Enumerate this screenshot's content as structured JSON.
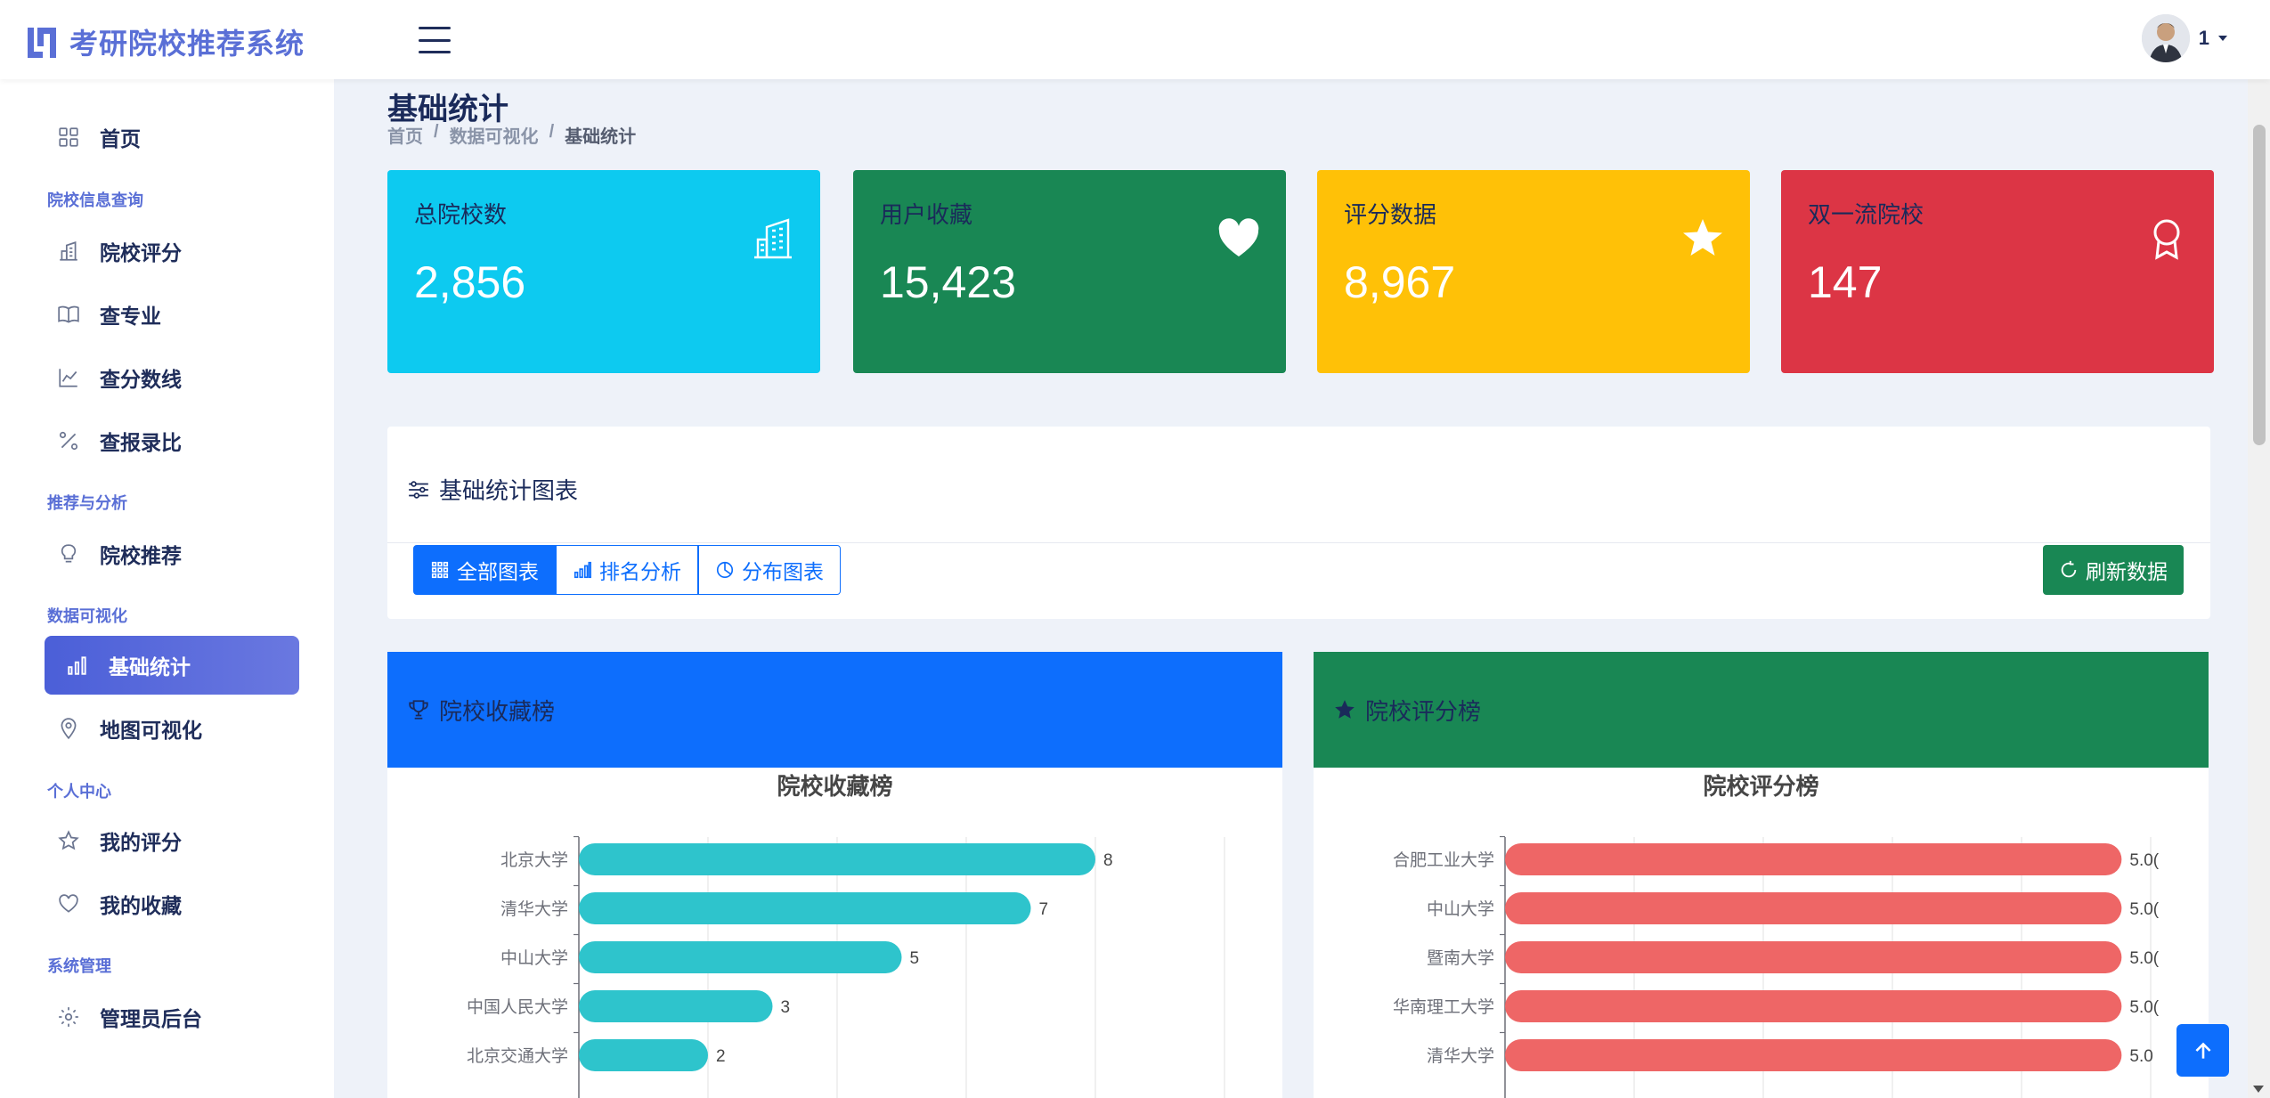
{
  "app": {
    "title": "考研院校推荐系统"
  },
  "user": {
    "name": "1"
  },
  "sidebar": {
    "home": "首页",
    "sections": [
      {
        "label": "院校信息查询",
        "items": [
          "院校评分",
          "查专业",
          "查分数线",
          "查报录比"
        ]
      },
      {
        "label": "推荐与分析",
        "items": [
          "院校推荐"
        ]
      },
      {
        "label": "数据可视化",
        "items": [
          "基础统计",
          "地图可视化"
        ]
      },
      {
        "label": "个人中心",
        "items": [
          "我的评分",
          "我的收藏"
        ]
      },
      {
        "label": "系统管理",
        "items": [
          "管理员后台"
        ]
      }
    ]
  },
  "page": {
    "title": "基础统计",
    "breadcrumb": [
      "首页",
      "数据可视化",
      "基础统计"
    ]
  },
  "stats": [
    {
      "label": "总院校数",
      "value": "2,856",
      "icon": "building-icon",
      "color": "#0dcaf0"
    },
    {
      "label": "用户收藏",
      "value": "15,423",
      "icon": "heart-icon",
      "color": "#198754"
    },
    {
      "label": "评分数据",
      "value": "8,967",
      "icon": "star-icon",
      "color": "#ffc107"
    },
    {
      "label": "双一流院校",
      "value": "147",
      "icon": "award-icon",
      "color": "#dc3545"
    }
  ],
  "chart_panel": {
    "title": "基础统计图表",
    "buttons": [
      "全部图表",
      "排名分析",
      "分布图表"
    ],
    "refresh": "刷新数据"
  },
  "cards": {
    "favorites_title": "院校收藏榜",
    "ratings_title": "院校评分榜"
  },
  "chart_data": [
    {
      "type": "bar",
      "orientation": "horizontal",
      "title": "院校收藏榜",
      "categories": [
        "北京大学",
        "清华大学",
        "中山大学",
        "中国人民大学",
        "北京交通大学"
      ],
      "values": [
        8,
        7,
        5,
        3,
        2
      ],
      "value_labels": [
        "8",
        "7",
        "5",
        "3",
        "2"
      ],
      "xlim": [
        0,
        10
      ],
      "grid": true,
      "color": "#2ec4cc"
    },
    {
      "type": "bar",
      "orientation": "horizontal",
      "title": "院校评分榜",
      "categories": [
        "合肥工业大学",
        "中山大学",
        "暨南大学",
        "华南理工大学",
        "清华大学"
      ],
      "values": [
        5.0,
        5.0,
        5.0,
        5.0,
        5.0
      ],
      "value_labels": [
        "5.0(",
        "5.0(",
        "5.0(",
        "5.0(",
        "5.0"
      ],
      "xlim": [
        0,
        5.0
      ],
      "grid": true,
      "color": "#ee6666"
    }
  ]
}
